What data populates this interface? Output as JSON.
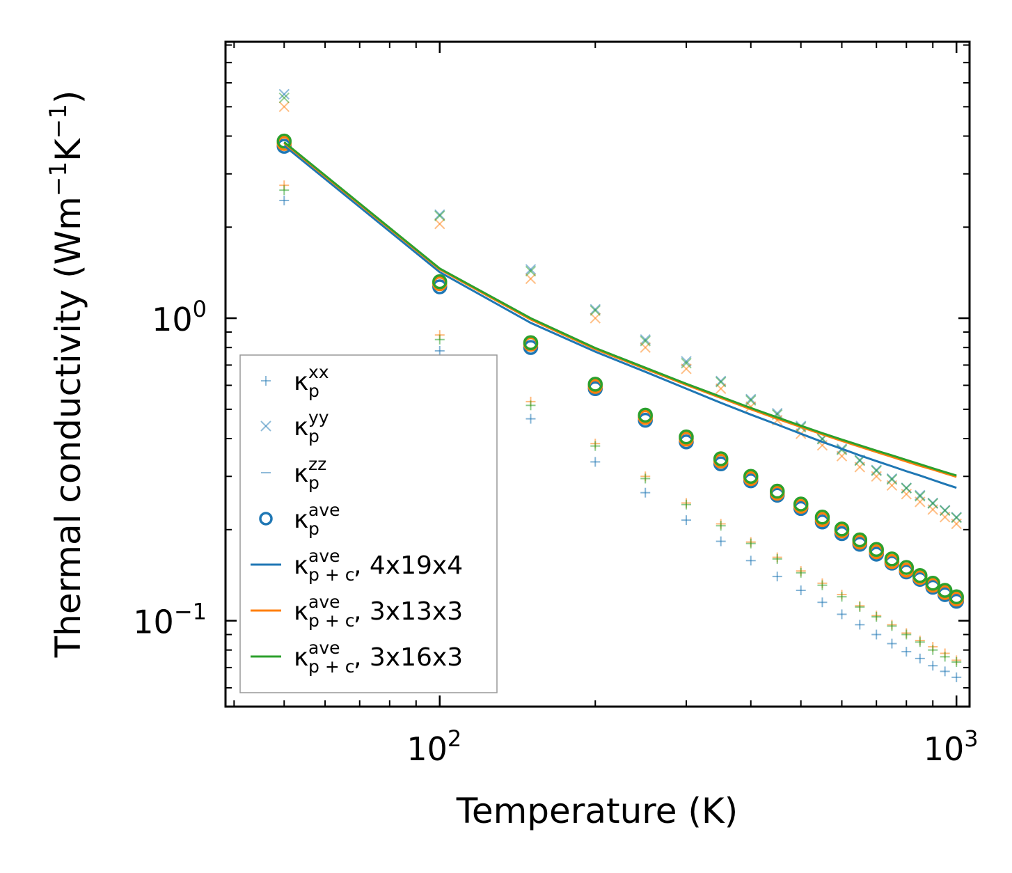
{
  "chart_data": {
    "type": "scatter",
    "title": "",
    "xlabel": "Temperature (K)",
    "ylabel_main": "Thermal conductivity (Wm",
    "ylabel_exp1": "−1",
    "ylabel_mid": "K",
    "ylabel_exp2": "−1",
    "ylabel_end": ")",
    "xscale": "log",
    "yscale": "log",
    "xlim": [
      38.5,
      1060
    ],
    "ylim": [
      0.052,
      8.2
    ],
    "x_ticks": [
      {
        "value": 100,
        "base": "10",
        "exp": "2"
      },
      {
        "value": 1000,
        "base": "10",
        "exp": "3"
      }
    ],
    "y_ticks": [
      {
        "value": 0.1,
        "base": "10",
        "exp": "−1"
      },
      {
        "value": 1,
        "base": "10",
        "exp": "0"
      }
    ],
    "colors": {
      "blue": "#1f77b4",
      "orange": "#ff7f0e",
      "green": "#2ca02c"
    },
    "temperatures": [
      50,
      100,
      150,
      200,
      250,
      300,
      350,
      400,
      450,
      500,
      550,
      600,
      650,
      700,
      750,
      800,
      850,
      900,
      950,
      1000
    ],
    "series": [
      {
        "name": "kp_xx_4x19x4",
        "kind": "plus",
        "color": "#1f77b4",
        "values": [
          2.45,
          0.78,
          0.465,
          0.335,
          0.265,
          0.215,
          0.183,
          0.158,
          0.14,
          0.126,
          0.115,
          0.105,
          0.097,
          0.09,
          0.084,
          0.079,
          0.075,
          0.071,
          0.068,
          0.065
        ]
      },
      {
        "name": "kp_xx_3x13x3",
        "kind": "plus",
        "color": "#ff7f0e",
        "values": [
          2.75,
          0.88,
          0.53,
          0.385,
          0.3,
          0.245,
          0.209,
          0.182,
          0.162,
          0.146,
          0.133,
          0.122,
          0.112,
          0.104,
          0.097,
          0.091,
          0.086,
          0.082,
          0.078,
          0.074
        ]
      },
      {
        "name": "kp_xx_3x16x3",
        "kind": "plus",
        "color": "#2ca02c",
        "values": [
          2.65,
          0.85,
          0.515,
          0.378,
          0.295,
          0.242,
          0.206,
          0.18,
          0.16,
          0.144,
          0.131,
          0.12,
          0.111,
          0.103,
          0.096,
          0.09,
          0.085,
          0.08,
          0.076,
          0.073
        ]
      },
      {
        "name": "kp_yy_4x19x4",
        "kind": "cross",
        "color": "#1f77b4",
        "values": [
          5.5,
          2.2,
          1.45,
          1.07,
          0.85,
          0.72,
          0.62,
          0.54,
          0.485,
          0.44,
          0.4,
          0.37,
          0.34,
          0.315,
          0.295,
          0.275,
          0.26,
          0.245,
          0.232,
          0.22
        ]
      },
      {
        "name": "kp_yy_3x13x3",
        "kind": "cross",
        "color": "#ff7f0e",
        "values": [
          5.0,
          2.05,
          1.35,
          1.0,
          0.8,
          0.68,
          0.585,
          0.51,
          0.46,
          0.415,
          0.38,
          0.35,
          0.322,
          0.3,
          0.28,
          0.262,
          0.247,
          0.233,
          0.22,
          0.209
        ]
      },
      {
        "name": "kp_yy_3x16x3",
        "kind": "cross",
        "color": "#2ca02c",
        "values": [
          5.35,
          2.18,
          1.43,
          1.06,
          0.84,
          0.71,
          0.615,
          0.535,
          0.48,
          0.436,
          0.398,
          0.367,
          0.338,
          0.313,
          0.293,
          0.274,
          0.258,
          0.244,
          0.231,
          0.219
        ]
      },
      {
        "name": "kp_ave_4x19x4",
        "kind": "circle",
        "color": "#1f77b4",
        "values": [
          3.7,
          1.27,
          0.8,
          0.585,
          0.46,
          0.39,
          0.33,
          0.29,
          0.26,
          0.235,
          0.212,
          0.194,
          0.179,
          0.166,
          0.155,
          0.145,
          0.137,
          0.129,
          0.122,
          0.116
        ]
      },
      {
        "name": "kp_ave_3x13x3",
        "kind": "circle",
        "color": "#ff7f0e",
        "values": [
          3.78,
          1.3,
          0.82,
          0.595,
          0.47,
          0.398,
          0.337,
          0.295,
          0.264,
          0.239,
          0.216,
          0.198,
          0.182,
          0.169,
          0.157,
          0.147,
          0.139,
          0.131,
          0.124,
          0.118
        ]
      },
      {
        "name": "kp_ave_3x16x3",
        "kind": "circle",
        "color": "#2ca02c",
        "values": [
          3.85,
          1.32,
          0.83,
          0.605,
          0.478,
          0.405,
          0.343,
          0.3,
          0.268,
          0.243,
          0.22,
          0.201,
          0.185,
          0.172,
          0.16,
          0.15,
          0.141,
          0.133,
          0.126,
          0.12
        ]
      },
      {
        "name": "kpc_ave_4x19x4",
        "kind": "line",
        "color": "#1f77b4",
        "values": [
          3.72,
          1.42,
          0.965,
          0.775,
          0.665,
          0.585,
          0.525,
          0.48,
          0.445,
          0.415,
          0.39,
          0.37,
          0.352,
          0.337,
          0.324,
          0.312,
          0.302,
          0.292,
          0.283,
          0.275
        ]
      },
      {
        "name": "kpc_ave_3x13x3",
        "kind": "line",
        "color": "#ff7f0e",
        "values": [
          3.79,
          1.45,
          0.99,
          0.79,
          0.68,
          0.602,
          0.545,
          0.5,
          0.465,
          0.437,
          0.413,
          0.393,
          0.376,
          0.361,
          0.348,
          0.336,
          0.325,
          0.316,
          0.307,
          0.299
        ]
      },
      {
        "name": "kpc_ave_3x16x3",
        "kind": "line",
        "color": "#2ca02c",
        "values": [
          3.82,
          1.46,
          1.0,
          0.797,
          0.686,
          0.607,
          0.55,
          0.505,
          0.47,
          0.441,
          0.417,
          0.397,
          0.38,
          0.365,
          0.352,
          0.34,
          0.329,
          0.319,
          0.31,
          0.302
        ]
      }
    ],
    "legend": {
      "placement": "lower-left",
      "entries": [
        {
          "kind": "plus",
          "color": "#1f77b4",
          "alpha": 0.5,
          "base": "κ",
          "sub": "p",
          "sup": "xx",
          "suffix": ""
        },
        {
          "kind": "cross",
          "color": "#1f77b4",
          "alpha": 0.5,
          "base": "κ",
          "sub": "p",
          "sup": "yy",
          "suffix": ""
        },
        {
          "kind": "hline",
          "color": "#1f77b4",
          "alpha": 0.5,
          "base": "κ",
          "sub": "p",
          "sup": "zz",
          "suffix": ""
        },
        {
          "kind": "circle",
          "color": "#1f77b4",
          "alpha": 1,
          "base": "κ",
          "sub": "p",
          "sup": "ave",
          "suffix": ""
        },
        {
          "kind": "line",
          "color": "#1f77b4",
          "alpha": 1,
          "base": "κ",
          "sub": "p + c",
          "sup": "ave",
          "suffix": ", 4x19x4"
        },
        {
          "kind": "line",
          "color": "#ff7f0e",
          "alpha": 1,
          "base": "κ",
          "sub": "p + c",
          "sup": "ave",
          "suffix": ", 3x13x3"
        },
        {
          "kind": "line",
          "color": "#2ca02c",
          "alpha": 1,
          "base": "κ",
          "sub": "p + c",
          "sup": "ave",
          "suffix": ", 3x16x3"
        }
      ]
    }
  }
}
